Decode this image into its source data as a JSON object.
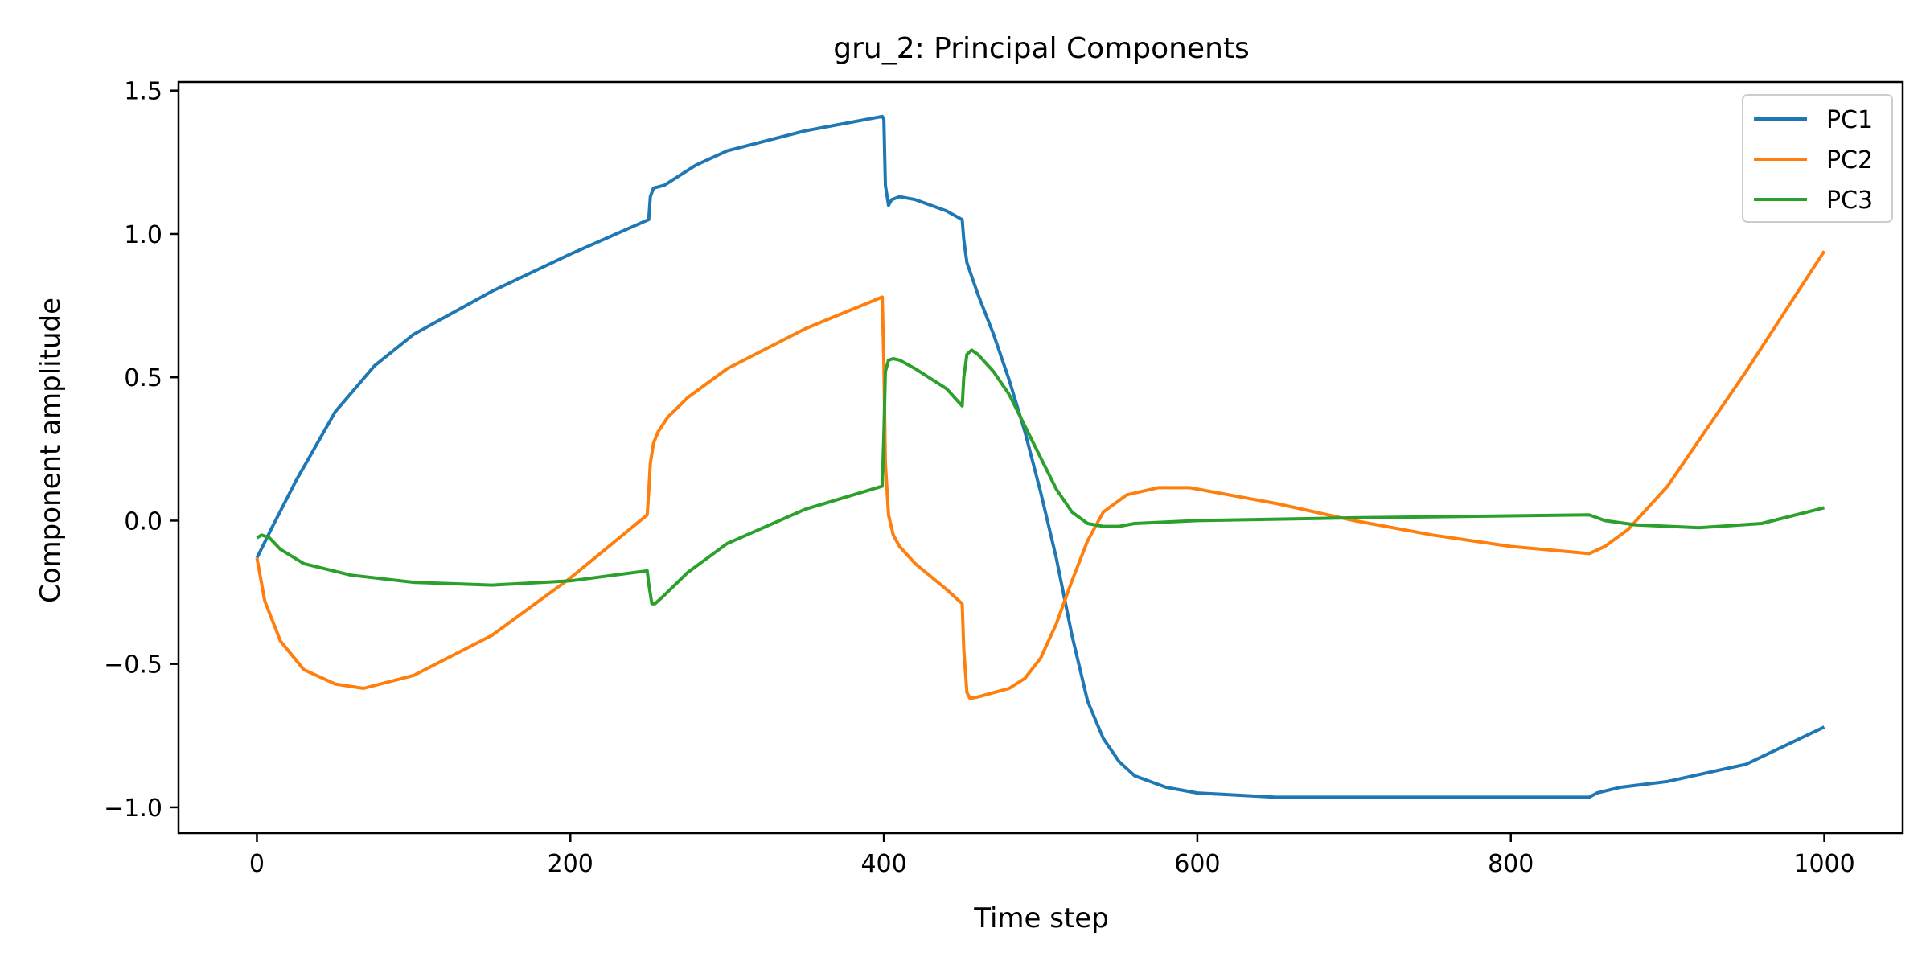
{
  "chart_data": {
    "type": "line",
    "title": "gru_2: Principal Components",
    "xlabel": "Time step",
    "ylabel": "Component amplitude",
    "xlim": [
      -50,
      1050
    ],
    "ylim": [
      -1.09,
      1.53
    ],
    "xticks": [
      0,
      200,
      400,
      600,
      800,
      1000
    ],
    "xtick_labels": [
      "0",
      "200",
      "400",
      "600",
      "800",
      "1000"
    ],
    "yticks": [
      -1.0,
      -0.5,
      0.0,
      0.5,
      1.0,
      1.5
    ],
    "ytick_labels": [
      "−1.0",
      "−0.5",
      "0.0",
      "0.5",
      "1.0",
      "1.5"
    ],
    "grid": false,
    "legend": "top-right",
    "series": [
      {
        "name": "PC1",
        "color": "#1f77b4",
        "x": [
          0,
          10,
          25,
          50,
          75,
          100,
          150,
          200,
          250,
          251,
          253,
          260,
          280,
          300,
          350,
          399,
          400,
          401,
          403,
          405,
          410,
          420,
          440,
          450,
          451,
          453,
          460,
          470,
          480,
          490,
          500,
          510,
          520,
          530,
          540,
          550,
          560,
          580,
          600,
          650,
          700,
          800,
          850,
          855,
          870,
          900,
          950,
          1000
        ],
        "y": [
          -0.13,
          -0.02,
          0.14,
          0.38,
          0.54,
          0.65,
          0.8,
          0.93,
          1.05,
          1.13,
          1.16,
          1.17,
          1.24,
          1.29,
          1.36,
          1.41,
          1.4,
          1.17,
          1.1,
          1.12,
          1.13,
          1.12,
          1.08,
          1.05,
          0.98,
          0.9,
          0.79,
          0.65,
          0.49,
          0.31,
          0.1,
          -0.13,
          -0.4,
          -0.63,
          -0.76,
          -0.84,
          -0.89,
          -0.93,
          -0.95,
          -0.965,
          -0.965,
          -0.965,
          -0.965,
          -0.95,
          -0.93,
          -0.91,
          -0.85,
          -0.72
        ]
      },
      {
        "name": "PC2",
        "color": "#ff7f0e",
        "x": [
          0,
          5,
          15,
          30,
          50,
          68,
          100,
          150,
          200,
          249,
          250,
          251,
          253,
          256,
          262,
          275,
          300,
          350,
          399,
          400,
          401,
          403,
          406,
          410,
          420,
          440,
          450,
          451,
          453,
          455,
          460,
          470,
          480,
          490,
          500,
          510,
          520,
          530,
          540,
          555,
          575,
          595,
          620,
          650,
          700,
          750,
          800,
          850,
          860,
          875,
          900,
          950,
          1000
        ],
        "y": [
          -0.13,
          -0.28,
          -0.42,
          -0.52,
          -0.57,
          -0.585,
          -0.54,
          -0.4,
          -0.2,
          0.02,
          0.1,
          0.2,
          0.27,
          0.31,
          0.36,
          0.43,
          0.53,
          0.67,
          0.78,
          0.55,
          0.2,
          0.02,
          -0.05,
          -0.09,
          -0.15,
          -0.24,
          -0.29,
          -0.45,
          -0.6,
          -0.62,
          -0.615,
          -0.6,
          -0.585,
          -0.55,
          -0.48,
          -0.36,
          -0.21,
          -0.07,
          0.03,
          0.09,
          0.115,
          0.115,
          0.09,
          0.06,
          0.0,
          -0.05,
          -0.09,
          -0.115,
          -0.09,
          -0.03,
          0.12,
          0.52,
          0.94
        ]
      },
      {
        "name": "PC3",
        "color": "#2ca02c",
        "x": [
          0,
          3,
          8,
          15,
          30,
          60,
          100,
          150,
          200,
          249,
          250,
          252,
          254,
          260,
          275,
          300,
          350,
          399,
          400,
          401,
          403,
          406,
          410,
          420,
          440,
          450,
          451,
          453,
          456,
          460,
          470,
          480,
          490,
          500,
          510,
          520,
          530,
          540,
          550,
          560,
          600,
          700,
          850,
          860,
          880,
          920,
          960,
          1000
        ],
        "y": [
          -0.06,
          -0.05,
          -0.06,
          -0.1,
          -0.15,
          -0.19,
          -0.215,
          -0.225,
          -0.21,
          -0.175,
          -0.22,
          -0.29,
          -0.29,
          -0.26,
          -0.18,
          -0.08,
          0.04,
          0.12,
          0.3,
          0.52,
          0.56,
          0.565,
          0.56,
          0.53,
          0.46,
          0.4,
          0.5,
          0.58,
          0.595,
          0.58,
          0.52,
          0.44,
          0.33,
          0.22,
          0.11,
          0.03,
          -0.01,
          -0.02,
          -0.02,
          -0.01,
          0.0,
          0.01,
          0.02,
          0.0,
          -0.015,
          -0.025,
          -0.01,
          0.045
        ]
      }
    ]
  }
}
